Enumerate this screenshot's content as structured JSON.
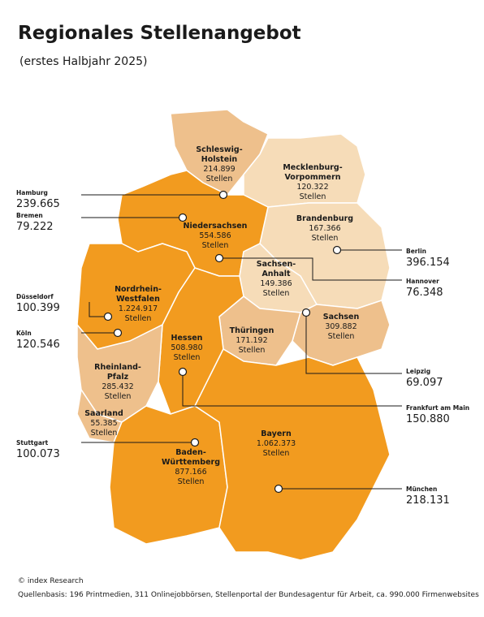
{
  "title": "Regionales Stellenangebot",
  "subtitle": "(erstes Halbjahr 2025)",
  "unit": "Stellen",
  "states": [
    {
      "name_lines": [
        "Schleswig-",
        "Holstein"
      ],
      "value": "214.899"
    },
    {
      "name_lines": [
        "Mecklenburg-",
        "Vorpommern"
      ],
      "value": "120.322"
    },
    {
      "name_lines": [
        "Niedersachsen"
      ],
      "value": "554.586"
    },
    {
      "name_lines": [
        "Brandenburg"
      ],
      "value": "167.366"
    },
    {
      "name_lines": [
        "Sachsen-",
        "Anhalt"
      ],
      "value": "149.386"
    },
    {
      "name_lines": [
        "Nordrhein-",
        "Westfalen"
      ],
      "value": "1.224.917"
    },
    {
      "name_lines": [
        "Sachsen"
      ],
      "value": "309.882"
    },
    {
      "name_lines": [
        "Thüringen"
      ],
      "value": "171.192"
    },
    {
      "name_lines": [
        "Hessen"
      ],
      "value": "508.980"
    },
    {
      "name_lines": [
        "Rheinland-",
        "Pfalz"
      ],
      "value": "285.432"
    },
    {
      "name_lines": [
        "Saarland"
      ],
      "value": "55.385"
    },
    {
      "name_lines": [
        "Baden-",
        "Württemberg"
      ],
      "value": "877.166"
    },
    {
      "name_lines": [
        "Bayern"
      ],
      "value": "1.062.373"
    }
  ],
  "cities": [
    {
      "name": "Hamburg",
      "value": "239.665"
    },
    {
      "name": "Bremen",
      "value": "79.222"
    },
    {
      "name": "Düsseldorf",
      "value": "100.399"
    },
    {
      "name": "Köln",
      "value": "120.546"
    },
    {
      "name": "Stuttgart",
      "value": "100.073"
    },
    {
      "name": "Berlin",
      "value": "396.154"
    },
    {
      "name": "Hannover",
      "value": "76.348"
    },
    {
      "name": "Leipzig",
      "value": "69.097"
    },
    {
      "name": "Frankfurt am Main",
      "value": "150.880"
    },
    {
      "name": "München",
      "value": "218.131"
    }
  ],
  "footer": {
    "copyright": "© index Research",
    "source": "Quellenbasis: 196 Printmedien, 311 Onlinejobbörsen, Stellenportal der Bundesagentur für Arbeit, ca. 990.000 Firmenwebsites"
  }
}
